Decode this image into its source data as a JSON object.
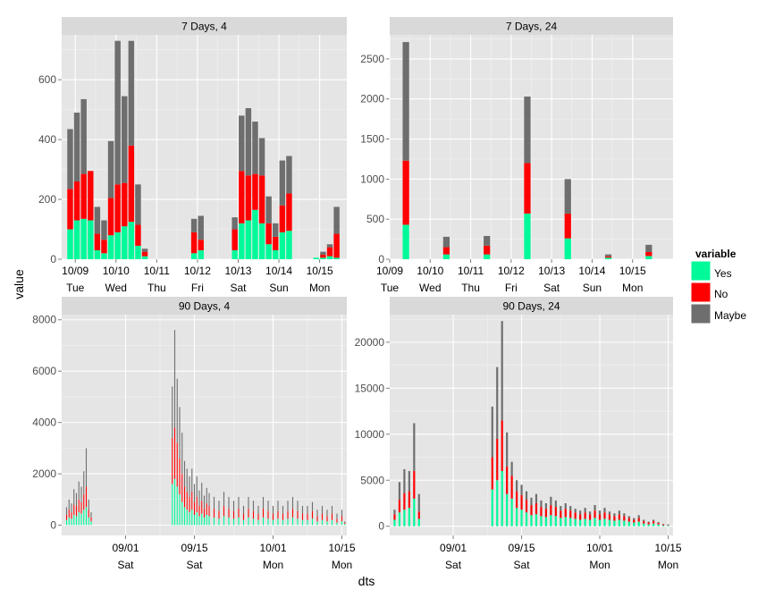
{
  "xlabel": "dts",
  "ylabel": "value",
  "legend": {
    "title": "variable",
    "placement": "right",
    "items": [
      {
        "label": "Yes",
        "color": "#00FA9A"
      },
      {
        "label": "No",
        "color": "#FF0000"
      },
      {
        "label": "Maybe",
        "color": "#6E6E6E"
      }
    ]
  },
  "chart_data": [
    {
      "type": "bar",
      "stacked": true,
      "title": "7 Days,  4",
      "y_ticks": [
        0,
        200,
        400,
        600
      ],
      "ylim": [
        0,
        750
      ],
      "x_ticks": [
        {
          "x": 0,
          "line1": "10/09",
          "line2": "Tue"
        },
        {
          "x": 24,
          "line1": "10/10",
          "line2": "Wed"
        },
        {
          "x": 48,
          "line1": "10/11",
          "line2": "Thu"
        },
        {
          "x": 72,
          "line1": "10/12",
          "line2": "Fri"
        },
        {
          "x": 96,
          "line1": "10/13",
          "line2": "Sat"
        },
        {
          "x": 120,
          "line1": "10/14",
          "line2": "Sun"
        },
        {
          "x": 144,
          "line1": "10/15",
          "line2": "Mon"
        }
      ],
      "xlim": [
        -8,
        160
      ],
      "bar_width": 3.4,
      "x": [
        -3,
        1,
        5,
        9,
        13,
        17,
        21,
        25,
        29,
        33,
        37,
        41,
        45,
        70,
        74,
        94,
        98,
        102,
        106,
        110,
        114,
        118,
        122,
        126,
        142,
        146,
        150,
        154
      ],
      "series": [
        {
          "name": "Yes",
          "values": [
            100,
            130,
            135,
            130,
            30,
            20,
            80,
            90,
            110,
            125,
            45,
            10,
            0,
            20,
            30,
            30,
            120,
            130,
            165,
            120,
            50,
            30,
            90,
            95,
            5,
            5,
            10,
            5
          ]
        },
        {
          "name": "No",
          "values": [
            135,
            130,
            150,
            165,
            55,
            45,
            125,
            160,
            145,
            255,
            70,
            15,
            0,
            70,
            35,
            70,
            175,
            150,
            120,
            160,
            70,
            45,
            90,
            125,
            0,
            10,
            30,
            80
          ]
        },
        {
          "name": "Maybe",
          "values": [
            200,
            230,
            250,
            0,
            90,
            65,
            190,
            480,
            290,
            350,
            135,
            10,
            0,
            45,
            80,
            40,
            185,
            225,
            175,
            125,
            90,
            45,
            150,
            125,
            0,
            10,
            10,
            90
          ]
        }
      ]
    },
    {
      "type": "bar",
      "stacked": true,
      "title": "7 Days, 24",
      "y_ticks": [
        0,
        500,
        1000,
        1500,
        2000,
        2500
      ],
      "ylim": [
        0,
        2800
      ],
      "x_ticks": [
        {
          "x": 0,
          "line1": "10/09",
          "line2": "Tue"
        },
        {
          "x": 1,
          "line1": "10/10",
          "line2": "Wed"
        },
        {
          "x": 2,
          "line1": "10/11",
          "line2": "Thu"
        },
        {
          "x": 3,
          "line1": "10/12",
          "line2": "Fri"
        },
        {
          "x": 4,
          "line1": "10/13",
          "line2": "Sat"
        },
        {
          "x": 5,
          "line1": "10/14",
          "line2": "Sun"
        },
        {
          "x": 6,
          "line1": "10/15",
          "line2": "Mon"
        }
      ],
      "xlim": [
        0,
        7
      ],
      "bar_width": 0.16,
      "x": [
        0.4,
        1.4,
        2.4,
        3.4,
        4.4,
        5.4,
        6.4
      ],
      "series": [
        {
          "name": "Yes",
          "values": [
            430,
            60,
            60,
            570,
            260,
            20,
            40
          ]
        },
        {
          "name": "No",
          "values": [
            800,
            90,
            110,
            630,
            310,
            15,
            50
          ]
        },
        {
          "name": "Maybe",
          "values": [
            1480,
            130,
            120,
            830,
            430,
            25,
            90
          ]
        }
      ]
    },
    {
      "type": "bar",
      "stacked": true,
      "title": "90 Days,  4",
      "y_ticks": [
        0,
        2000,
        4000,
        6000,
        8000
      ],
      "ylim": [
        -400,
        8200
      ],
      "x_ticks": [
        {
          "x": 0,
          "line1": "09/01",
          "line2": "Sat"
        },
        {
          "x": 14,
          "line1": "09/15",
          "line2": "Sat"
        },
        {
          "x": 30,
          "line1": "10/01",
          "line2": "Mon"
        },
        {
          "x": 44,
          "line1": "10/15",
          "line2": "Mon"
        }
      ],
      "xlim": [
        -13,
        45
      ],
      "x": [
        -12,
        -11.5,
        -11,
        -10.5,
        -10,
        -9.5,
        -9,
        -8.5,
        -8,
        -7.5,
        -7,
        9.5,
        10,
        10.5,
        11,
        11.5,
        12,
        12.5,
        13,
        13.5,
        14,
        14.5,
        15,
        15.5,
        16,
        16.5,
        17,
        18,
        19,
        20,
        21,
        22,
        23,
        24,
        25,
        26,
        27,
        28,
        29,
        30,
        31,
        32,
        33,
        34,
        35,
        36,
        37,
        38,
        39,
        40,
        41,
        42,
        43,
        44,
        44.6
      ],
      "series": [
        {
          "name": "Yes",
          "values": [
            200,
            300,
            250,
            400,
            350,
            500,
            450,
            600,
            700,
            300,
            150,
            1600,
            1800,
            1500,
            1200,
            900,
            700,
            600,
            500,
            600,
            400,
            500,
            350,
            450,
            300,
            400,
            350,
            300,
            250,
            350,
            300,
            250,
            300,
            200,
            300,
            250,
            200,
            300,
            250,
            200,
            250,
            200,
            250,
            300,
            250,
            200,
            200,
            250,
            150,
            200,
            150,
            200,
            100,
            150,
            50
          ]
        },
        {
          "name": "No",
          "values": [
            200,
            300,
            250,
            400,
            400,
            500,
            450,
            600,
            800,
            300,
            150,
            1800,
            2000,
            1700,
            1400,
            1100,
            800,
            700,
            600,
            700,
            500,
            600,
            400,
            500,
            350,
            450,
            400,
            350,
            300,
            400,
            350,
            300,
            350,
            250,
            350,
            300,
            250,
            350,
            300,
            250,
            300,
            250,
            300,
            350,
            300,
            250,
            250,
            300,
            200,
            250,
            200,
            250,
            150,
            200,
            50
          ]
        },
        {
          "name": "Maybe",
          "values": [
            300,
            400,
            350,
            600,
            500,
            700,
            600,
            900,
            1500,
            400,
            200,
            2000,
            3800,
            2500,
            2000,
            1600,
            1000,
            900,
            800,
            900,
            700,
            800,
            600,
            700,
            500,
            600,
            500,
            450,
            400,
            550,
            450,
            400,
            450,
            300,
            450,
            400,
            300,
            450,
            400,
            300,
            400,
            300,
            400,
            450,
            400,
            300,
            300,
            350,
            250,
            300,
            250,
            300,
            200,
            250,
            50
          ]
        }
      ]
    },
    {
      "type": "bar",
      "stacked": true,
      "title": "90 Days, 24",
      "y_ticks": [
        0,
        5000,
        10000,
        15000,
        20000
      ],
      "ylim": [
        -1000,
        23000
      ],
      "x_ticks": [
        {
          "x": 0,
          "line1": "09/01",
          "line2": "Sat"
        },
        {
          "x": 14,
          "line1": "09/15",
          "line2": "Sat"
        },
        {
          "x": 30,
          "line1": "10/01",
          "line2": "Mon"
        },
        {
          "x": 44,
          "line1": "10/15",
          "line2": "Mon"
        }
      ],
      "xlim": [
        -13,
        45
      ],
      "x": [
        -12,
        -11,
        -10,
        -9,
        -8,
        -7,
        8,
        9,
        10,
        11,
        12,
        13,
        14,
        15,
        16,
        17,
        18,
        19,
        20,
        21,
        22,
        23,
        24,
        25,
        26,
        27,
        28,
        29,
        30,
        31,
        32,
        33,
        34,
        35,
        36,
        37,
        38,
        39,
        40,
        41,
        42,
        43,
        44
      ],
      "series": [
        {
          "name": "Yes",
          "values": [
            700,
            1500,
            1800,
            2000,
            3000,
            800,
            4000,
            5000,
            6000,
            3500,
            3000,
            2000,
            1800,
            1500,
            1200,
            1300,
            1100,
            1000,
            1200,
            1100,
            900,
            1000,
            900,
            800,
            700,
            800,
            700,
            900,
            700,
            800,
            700,
            600,
            700,
            600,
            500,
            400,
            500,
            300,
            200,
            300,
            200,
            100,
            100
          ]
        },
        {
          "name": "No",
          "values": [
            600,
            1400,
            1800,
            1800,
            3000,
            800,
            3500,
            4500,
            5500,
            3000,
            2500,
            1800,
            1600,
            1400,
            1100,
            1200,
            1000,
            900,
            1100,
            1000,
            800,
            900,
            800,
            700,
            600,
            700,
            600,
            800,
            600,
            700,
            600,
            500,
            600,
            500,
            400,
            300,
            400,
            250,
            200,
            250,
            150,
            100,
            50
          ]
        },
        {
          "name": "Maybe",
          "values": [
            500,
            1900,
            2600,
            2200,
            5200,
            1900,
            5500,
            7800,
            10800,
            3700,
            1500,
            1200,
            1100,
            900,
            800,
            1000,
            700,
            600,
            900,
            700,
            500,
            600,
            500,
            400,
            400,
            500,
            300,
            600,
            400,
            500,
            300,
            300,
            400,
            300,
            200,
            200,
            300,
            150,
            100,
            150,
            100,
            50,
            50
          ]
        }
      ]
    }
  ]
}
